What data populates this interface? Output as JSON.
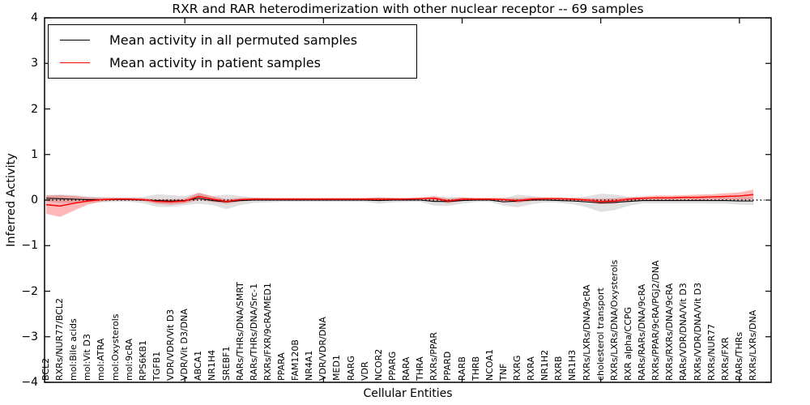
{
  "chart_data": {
    "type": "line",
    "title": "RXR and RAR heterodimerization with other nuclear receptor -- 69 samples",
    "xlabel": "Cellular Entities",
    "ylabel": "Inferred Activity",
    "ylim": [
      -4,
      4
    ],
    "yticks": [
      4,
      3,
      2,
      1,
      0,
      -1,
      -2,
      -3,
      -4
    ],
    "xtick_positions": [
      10,
      20,
      30,
      40,
      50
    ],
    "grid": false,
    "legend_position": "upper left",
    "reference_line": {
      "y": 0,
      "style": "dotted",
      "color": "#000000"
    },
    "categories": [
      "BCL2",
      "RXRs/NUR77/BCL2",
      "mol:Bile acids",
      "mol:Vit D3",
      "mol:ATRA",
      "mol:Oxysterols",
      "mol:9cRA",
      "RPS6KB1",
      "TGFB1",
      "VDR/VDR/Vit D3",
      "VDR/Vit D3/DNA",
      "ABCA1",
      "NR1H4",
      "SREBF1",
      "RARs/THRs/DNA/SMRT",
      "RARs/THRs/DNA/Src-1",
      "RXRs/FXR/9cRA/MED1",
      "PPARA",
      "FAM120B",
      "NR4A1",
      "VDR/VDR/DNA",
      "MED1",
      "RARG",
      "VDR",
      "NCOR2",
      "PPARG",
      "RARA",
      "THRA",
      "RXRs/PPAR",
      "PPARD",
      "RARB",
      "THRB",
      "NCOA1",
      "TNF",
      "RXRG",
      "RXRA",
      "NR1H2",
      "RXRB",
      "NR1H3",
      "RXRs/LXRs/DNA/9cRA",
      "cholesterol transport",
      "RXRs/LXRs/DNA/Oxysterols",
      "RXR alpha/CCPG",
      "RARs/RARs/DNA/9cRA",
      "RXRs/PPAR/9cRA/PGJ2/DNA",
      "RXRs/RXRs/DNA/9cRA",
      "RARs/VDR/DNA/Vit D3",
      "RXRs/VDR/DNA/Vit D3",
      "RXRs/NUR77",
      "RXRs/FXR",
      "RARs/THRs",
      "RXRs/LXRs/DNA"
    ],
    "series": [
      {
        "name": "Mean activity in all permuted samples",
        "color": "#000000",
        "band_color": "#bbbbbb",
        "band_opacity": 0.45,
        "values": [
          0.04,
          0.03,
          0.02,
          0.01,
          0.01,
          0.01,
          0.01,
          0.0,
          -0.01,
          -0.02,
          -0.01,
          0.04,
          -0.01,
          -0.04,
          -0.01,
          0.0,
          0.0,
          0.0,
          0.0,
          0.0,
          0.0,
          0.0,
          0.0,
          0.0,
          -0.01,
          0.0,
          0.0,
          0.0,
          -0.03,
          -0.03,
          -0.01,
          0.0,
          0.0,
          -0.04,
          -0.02,
          0.0,
          0.0,
          -0.01,
          -0.02,
          -0.04,
          -0.06,
          -0.05,
          -0.03,
          -0.01,
          -0.01,
          -0.01,
          -0.01,
          -0.01,
          -0.01,
          -0.01,
          -0.02,
          -0.02
        ],
        "band": [
          0.07,
          0.09,
          0.09,
          0.07,
          0.06,
          0.05,
          0.05,
          0.07,
          0.14,
          0.13,
          0.1,
          0.12,
          0.1,
          0.16,
          0.1,
          0.06,
          0.05,
          0.04,
          0.04,
          0.04,
          0.04,
          0.04,
          0.04,
          0.04,
          0.07,
          0.05,
          0.04,
          0.04,
          0.09,
          0.1,
          0.07,
          0.04,
          0.04,
          0.08,
          0.14,
          0.09,
          0.05,
          0.05,
          0.07,
          0.12,
          0.2,
          0.17,
          0.1,
          0.06,
          0.06,
          0.06,
          0.06,
          0.06,
          0.07,
          0.07,
          0.08,
          0.09
        ]
      },
      {
        "name": "Mean activity in patient samples",
        "color": "#ff0000",
        "band_color": "#ff0000",
        "band_opacity": 0.28,
        "values": [
          -0.1,
          -0.13,
          -0.07,
          -0.02,
          0.01,
          0.02,
          0.02,
          0.01,
          -0.03,
          -0.04,
          -0.02,
          0.08,
          0.02,
          -0.03,
          0.01,
          0.02,
          0.02,
          0.02,
          0.02,
          0.02,
          0.02,
          0.02,
          0.02,
          0.02,
          0.02,
          0.02,
          0.02,
          0.03,
          0.04,
          -0.02,
          0.02,
          0.02,
          0.02,
          0.01,
          -0.01,
          0.02,
          0.03,
          0.03,
          0.02,
          0.0,
          -0.03,
          -0.02,
          0.02,
          0.04,
          0.05,
          0.05,
          0.06,
          0.06,
          0.07,
          0.08,
          0.09,
          0.12
        ],
        "band": [
          0.2,
          0.24,
          0.16,
          0.08,
          0.04,
          0.03,
          0.03,
          0.03,
          0.05,
          0.06,
          0.05,
          0.08,
          0.06,
          0.05,
          0.04,
          0.03,
          0.03,
          0.03,
          0.03,
          0.03,
          0.03,
          0.03,
          0.03,
          0.03,
          0.04,
          0.03,
          0.03,
          0.03,
          0.05,
          0.05,
          0.04,
          0.03,
          0.03,
          0.04,
          0.05,
          0.04,
          0.03,
          0.03,
          0.03,
          0.04,
          0.06,
          0.06,
          0.04,
          0.04,
          0.05,
          0.05,
          0.05,
          0.06,
          0.06,
          0.07,
          0.08,
          0.11
        ]
      }
    ]
  },
  "legend": {
    "entries": [
      {
        "label": "Mean activity in all permuted samples",
        "color": "#000000"
      },
      {
        "label": "Mean activity in patient samples",
        "color": "#ff0000"
      }
    ]
  }
}
